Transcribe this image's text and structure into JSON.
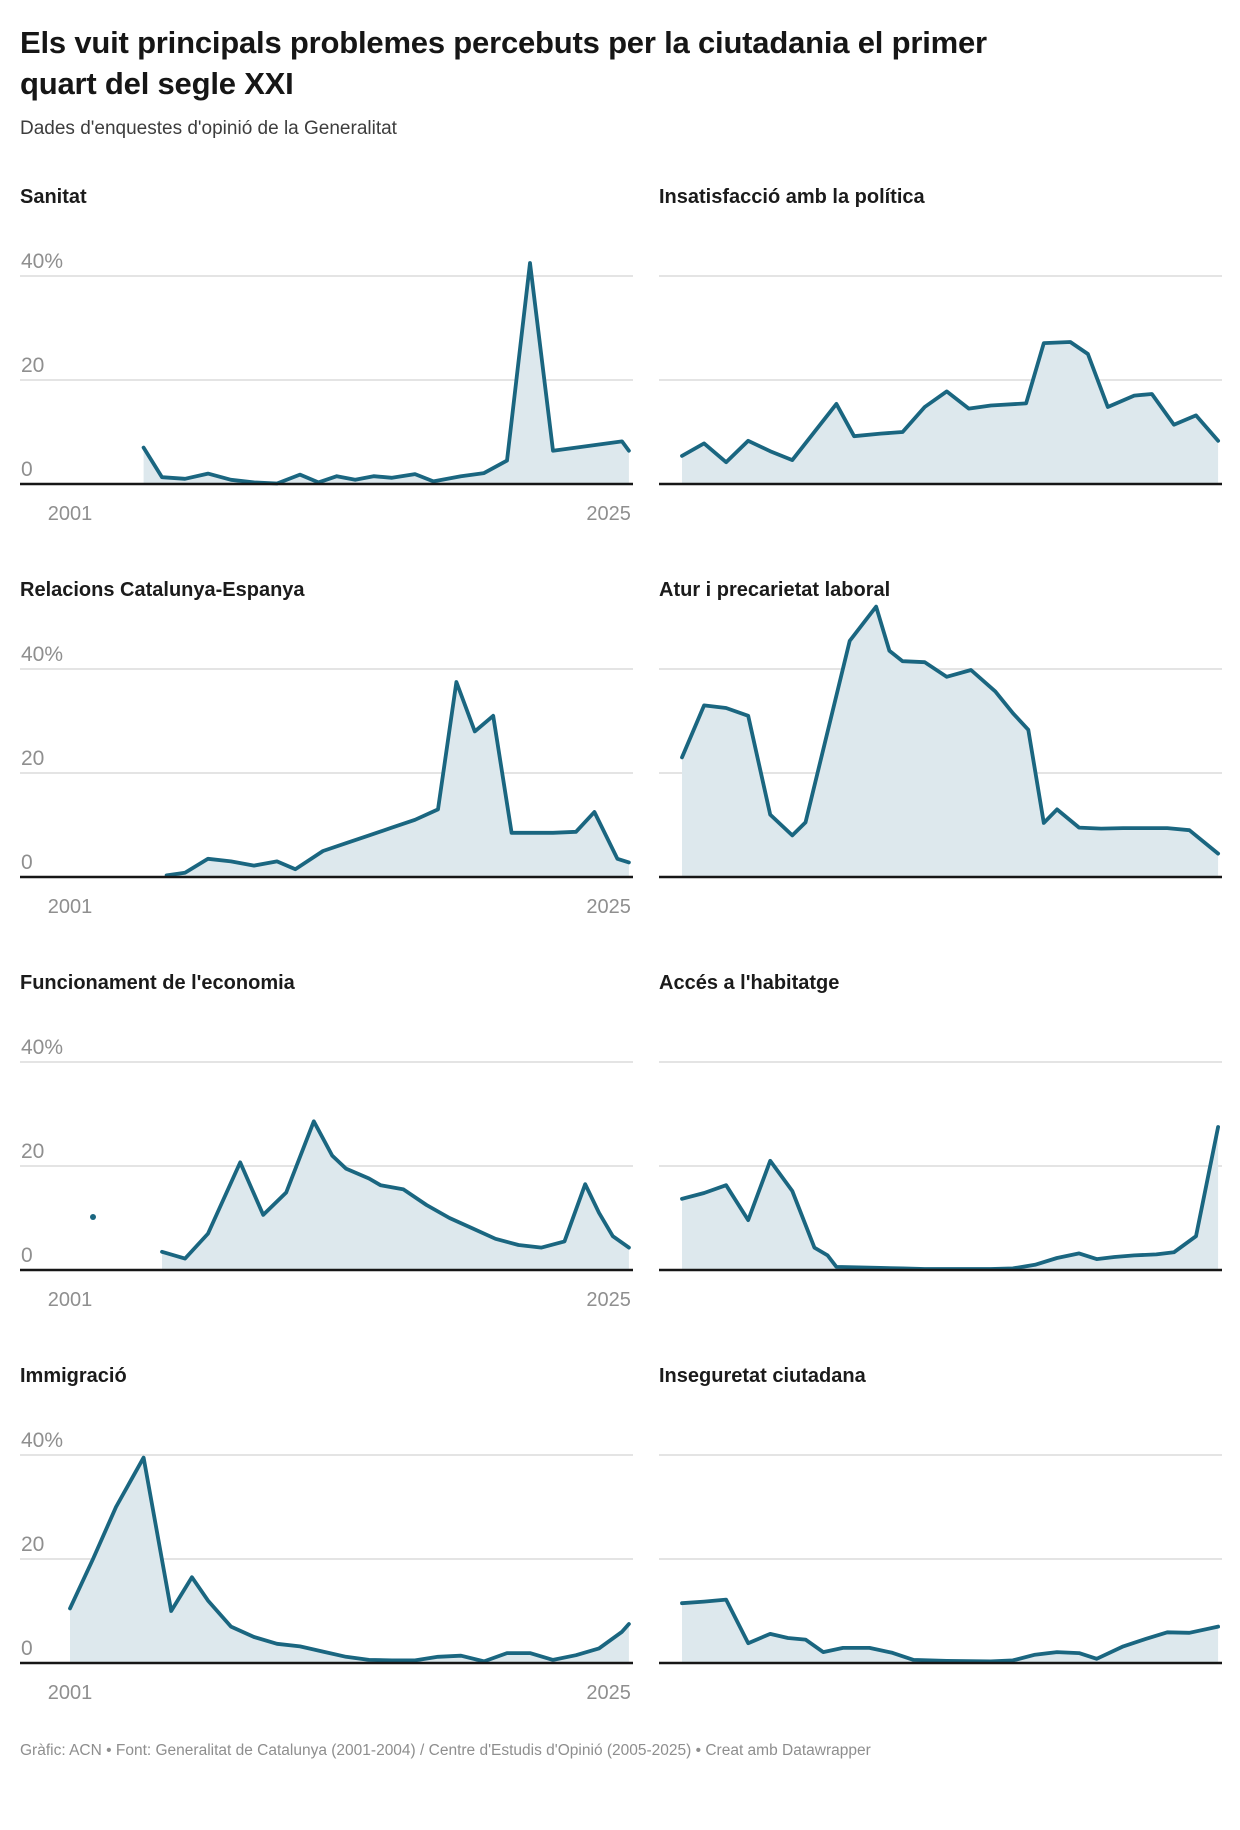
{
  "header": {
    "title": "Els vuit principals problemes percebuts per la ciutadania el primer quart del segle XXI",
    "subtitle": "Dades d'enquestes d'opinió de la Generalitat"
  },
  "footer": {
    "credit": "Gràfic: ACN • Font: Generalitat de Catalunya (2001-2004) / Centre d'Estudis d'Opinió (2005-2025) • Creat amb Datawrapper"
  },
  "axis": {
    "y_tick_labels": [
      "40%",
      "20",
      "0"
    ],
    "y_tick_values": [
      40,
      20,
      0
    ],
    "x_tick_labels": [
      "2001",
      "2025"
    ],
    "x_range": [
      2001,
      2025.3
    ],
    "ylim": [
      0,
      55
    ],
    "grid_values": [
      20,
      40
    ]
  },
  "colors": {
    "line": "#1a6680",
    "fill": "#dde8ed",
    "grid": "#dcdcdc",
    "axis_line": "#161616",
    "tick_label": "#8f8f8f"
  },
  "chart_data": [
    {
      "type": "area",
      "title": "Sanitat",
      "column": "left",
      "show_axis_labels": true,
      "points": [
        [
          2004.2,
          7
        ],
        [
          2005,
          1.3
        ],
        [
          2006,
          1
        ],
        [
          2007,
          2
        ],
        [
          2008,
          0.8
        ],
        [
          2009,
          0.3
        ],
        [
          2010,
          0.1
        ],
        [
          2011,
          1.8
        ],
        [
          2011.8,
          0.3
        ],
        [
          2012.6,
          1.5
        ],
        [
          2013.4,
          0.8
        ],
        [
          2014.2,
          1.5
        ],
        [
          2015,
          1.2
        ],
        [
          2016,
          1.9
        ],
        [
          2016.8,
          0.5
        ],
        [
          2018,
          1.5
        ],
        [
          2019,
          2.1
        ],
        [
          2020,
          4.5
        ],
        [
          2021,
          42.5
        ],
        [
          2022,
          6.4
        ],
        [
          2025,
          8.2
        ],
        [
          2025.3,
          6.4
        ]
      ]
    },
    {
      "type": "area",
      "title": "Insatisfacció amb la política",
      "column": "right",
      "show_axis_labels": false,
      "points": [
        [
          2001,
          5.4
        ],
        [
          2002,
          7.8
        ],
        [
          2003,
          4.2
        ],
        [
          2004,
          8.3
        ],
        [
          2005,
          6.3
        ],
        [
          2006,
          4.6
        ],
        [
          2008,
          15.4
        ],
        [
          2008.8,
          9.2
        ],
        [
          2010,
          9.7
        ],
        [
          2011,
          10
        ],
        [
          2012,
          14.8
        ],
        [
          2013,
          17.8
        ],
        [
          2014,
          14.5
        ],
        [
          2015,
          15.1
        ],
        [
          2016.6,
          15.5
        ],
        [
          2017.4,
          27.1
        ],
        [
          2018.6,
          27.3
        ],
        [
          2019.4,
          25
        ],
        [
          2020.3,
          14.8
        ],
        [
          2021.5,
          17
        ],
        [
          2022.3,
          17.3
        ],
        [
          2023.3,
          11.4
        ],
        [
          2024.3,
          13.2
        ],
        [
          2025.3,
          8.3
        ]
      ]
    },
    {
      "type": "area",
      "title": "Relacions Catalunya-Espanya",
      "column": "left",
      "show_axis_labels": true,
      "points": [
        [
          2005.2,
          0.3
        ],
        [
          2006,
          0.8
        ],
        [
          2007,
          3.5
        ],
        [
          2008,
          3
        ],
        [
          2009,
          2.2
        ],
        [
          2010,
          3
        ],
        [
          2010.8,
          1.5
        ],
        [
          2012,
          5
        ],
        [
          2013,
          6.5
        ],
        [
          2014,
          8
        ],
        [
          2015,
          9.5
        ],
        [
          2016,
          11
        ],
        [
          2017,
          13
        ],
        [
          2017.8,
          37.5
        ],
        [
          2018.6,
          28
        ],
        [
          2019.4,
          31
        ],
        [
          2020.2,
          8.5
        ],
        [
          2021,
          8.5
        ],
        [
          2022,
          8.5
        ],
        [
          2023,
          8.7
        ],
        [
          2023.8,
          12.5
        ],
        [
          2024.8,
          3.5
        ],
        [
          2025.3,
          2.8
        ]
      ]
    },
    {
      "type": "area",
      "title": "Atur i precarietat laboral",
      "column": "right",
      "show_axis_labels": false,
      "points": [
        [
          2001,
          23
        ],
        [
          2002,
          33
        ],
        [
          2003,
          32.5
        ],
        [
          2004,
          31
        ],
        [
          2005,
          12
        ],
        [
          2006,
          8
        ],
        [
          2006.6,
          10.5
        ],
        [
          2008.6,
          45.4
        ],
        [
          2009.8,
          52
        ],
        [
          2010.4,
          43.5
        ],
        [
          2011,
          41.5
        ],
        [
          2012,
          41.3
        ],
        [
          2013,
          38.5
        ],
        [
          2014.1,
          39.8
        ],
        [
          2015.2,
          35.7
        ],
        [
          2016,
          31.5
        ],
        [
          2016.7,
          28.3
        ],
        [
          2017.4,
          10.4
        ],
        [
          2018,
          13
        ],
        [
          2019,
          9.5
        ],
        [
          2020,
          9.3
        ],
        [
          2021,
          9.4
        ],
        [
          2022,
          9.4
        ],
        [
          2023,
          9.4
        ],
        [
          2024,
          9
        ],
        [
          2025.3,
          4.5
        ]
      ]
    },
    {
      "type": "area",
      "title": "Funcionament de l'economia",
      "column": "left",
      "show_axis_labels": true,
      "isolated_point": [
        2002,
        10.2
      ],
      "points": [
        [
          2005,
          3.5
        ],
        [
          2006,
          2.2
        ],
        [
          2007,
          7
        ],
        [
          2008.4,
          20.7
        ],
        [
          2009.4,
          10.6
        ],
        [
          2010.4,
          14.9
        ],
        [
          2011.6,
          28.6
        ],
        [
          2012.4,
          22
        ],
        [
          2013,
          19.5
        ],
        [
          2014,
          17.6
        ],
        [
          2014.5,
          16.3
        ],
        [
          2015.5,
          15.5
        ],
        [
          2016.5,
          12.5
        ],
        [
          2017.5,
          10
        ],
        [
          2018.5,
          8
        ],
        [
          2019.5,
          6
        ],
        [
          2020.5,
          4.8
        ],
        [
          2021.5,
          4.3
        ],
        [
          2022.5,
          5.5
        ],
        [
          2023.4,
          16.5
        ],
        [
          2024,
          11
        ],
        [
          2024.6,
          6.5
        ],
        [
          2025.3,
          4.3
        ]
      ]
    },
    {
      "type": "area",
      "title": "Accés a l'habitatge",
      "column": "right",
      "show_axis_labels": false,
      "points": [
        [
          2001,
          13.7
        ],
        [
          2002,
          14.8
        ],
        [
          2003,
          16.3
        ],
        [
          2004,
          9.6
        ],
        [
          2005,
          21
        ],
        [
          2006,
          15.2
        ],
        [
          2007,
          4.3
        ],
        [
          2007.6,
          2.8
        ],
        [
          2008,
          0.6
        ],
        [
          2009,
          0.5
        ],
        [
          2010,
          0.4
        ],
        [
          2011,
          0.3
        ],
        [
          2012,
          0.2
        ],
        [
          2013,
          0.2
        ],
        [
          2014,
          0.2
        ],
        [
          2015,
          0.2
        ],
        [
          2016,
          0.3
        ],
        [
          2017,
          1
        ],
        [
          2018,
          2.3
        ],
        [
          2019,
          3.2
        ],
        [
          2019.8,
          2.1
        ],
        [
          2020.6,
          2.5
        ],
        [
          2021.5,
          2.8
        ],
        [
          2022.5,
          3
        ],
        [
          2023.3,
          3.4
        ],
        [
          2024.3,
          6.5
        ],
        [
          2025.3,
          27.5
        ]
      ]
    },
    {
      "type": "area",
      "title": "Immigració",
      "column": "left",
      "show_axis_labels": true,
      "points": [
        [
          2001,
          10.5
        ],
        [
          2002,
          20
        ],
        [
          2003,
          30
        ],
        [
          2004.2,
          39.5
        ],
        [
          2005.4,
          10
        ],
        [
          2006.3,
          16.5
        ],
        [
          2007,
          12
        ],
        [
          2008,
          7
        ],
        [
          2009,
          5
        ],
        [
          2010,
          3.7
        ],
        [
          2011,
          3.2
        ],
        [
          2012,
          2.2
        ],
        [
          2013,
          1.2
        ],
        [
          2014,
          0.6
        ],
        [
          2015,
          0.5
        ],
        [
          2016,
          0.5
        ],
        [
          2017,
          1.2
        ],
        [
          2018,
          1.4
        ],
        [
          2019,
          0.3
        ],
        [
          2020,
          1.9
        ],
        [
          2021,
          1.9
        ],
        [
          2022,
          0.6
        ],
        [
          2023,
          1.5
        ],
        [
          2024,
          2.8
        ],
        [
          2025,
          6
        ],
        [
          2025.3,
          7.5
        ]
      ]
    },
    {
      "type": "area",
      "title": "Inseguretat ciutadana",
      "column": "right",
      "show_axis_labels": false,
      "points": [
        [
          2001,
          11.5
        ],
        [
          2002,
          11.8
        ],
        [
          2003,
          12.2
        ],
        [
          2004,
          3.8
        ],
        [
          2005,
          5.6
        ],
        [
          2005.8,
          4.8
        ],
        [
          2006.6,
          4.5
        ],
        [
          2007.4,
          2.1
        ],
        [
          2008.3,
          2.9
        ],
        [
          2009.5,
          2.9
        ],
        [
          2010.5,
          2
        ],
        [
          2011.5,
          0.6
        ],
        [
          2013,
          0.4
        ],
        [
          2015,
          0.3
        ],
        [
          2016,
          0.5
        ],
        [
          2017,
          1.6
        ],
        [
          2018,
          2.1
        ],
        [
          2019,
          1.9
        ],
        [
          2019.8,
          0.8
        ],
        [
          2021,
          3.2
        ],
        [
          2022,
          4.6
        ],
        [
          2023,
          5.9
        ],
        [
          2024,
          5.8
        ],
        [
          2025.3,
          7
        ]
      ]
    }
  ]
}
